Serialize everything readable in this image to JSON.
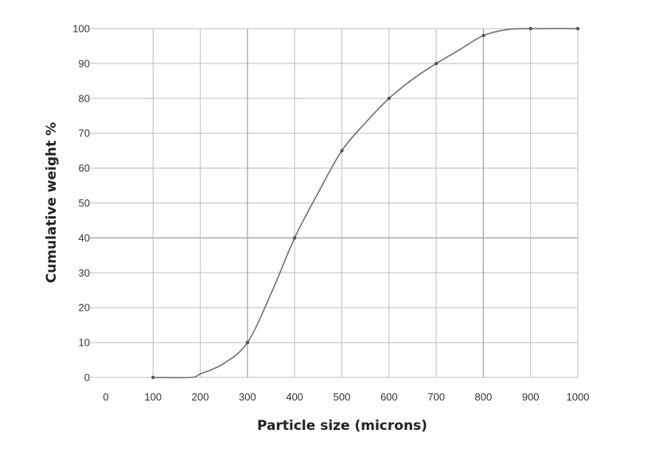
{
  "chart_data": {
    "type": "line",
    "title": "",
    "xlabel": "Particle size (microns)",
    "ylabel": "Cumulative weight %",
    "xlim": [
      0,
      1000
    ],
    "ylim": [
      0,
      100
    ],
    "x_ticks": [
      "0",
      "100",
      "200",
      "300",
      "400",
      "500",
      "600",
      "700",
      "800",
      "900",
      "1000"
    ],
    "y_ticks": [
      "0",
      "10",
      "20",
      "30",
      "40",
      "50",
      "60",
      "70",
      "80",
      "90",
      "100"
    ],
    "grid": true,
    "legend": "none",
    "series": [
      {
        "color": "#6f6f6f",
        "x": [
          100,
          180,
          200,
          250,
          300,
          350,
          400,
          450,
          500,
          550,
          600,
          650,
          700,
          750,
          800,
          850,
          900,
          1000
        ],
        "y": [
          0,
          0,
          1,
          4,
          10,
          24,
          40,
          53,
          65,
          73,
          80,
          85.5,
          90,
          94,
          98,
          99.7,
          100,
          100
        ]
      }
    ],
    "markers_at": [
      100,
      300,
      400,
      500,
      600,
      700,
      800,
      900,
      1000
    ]
  }
}
